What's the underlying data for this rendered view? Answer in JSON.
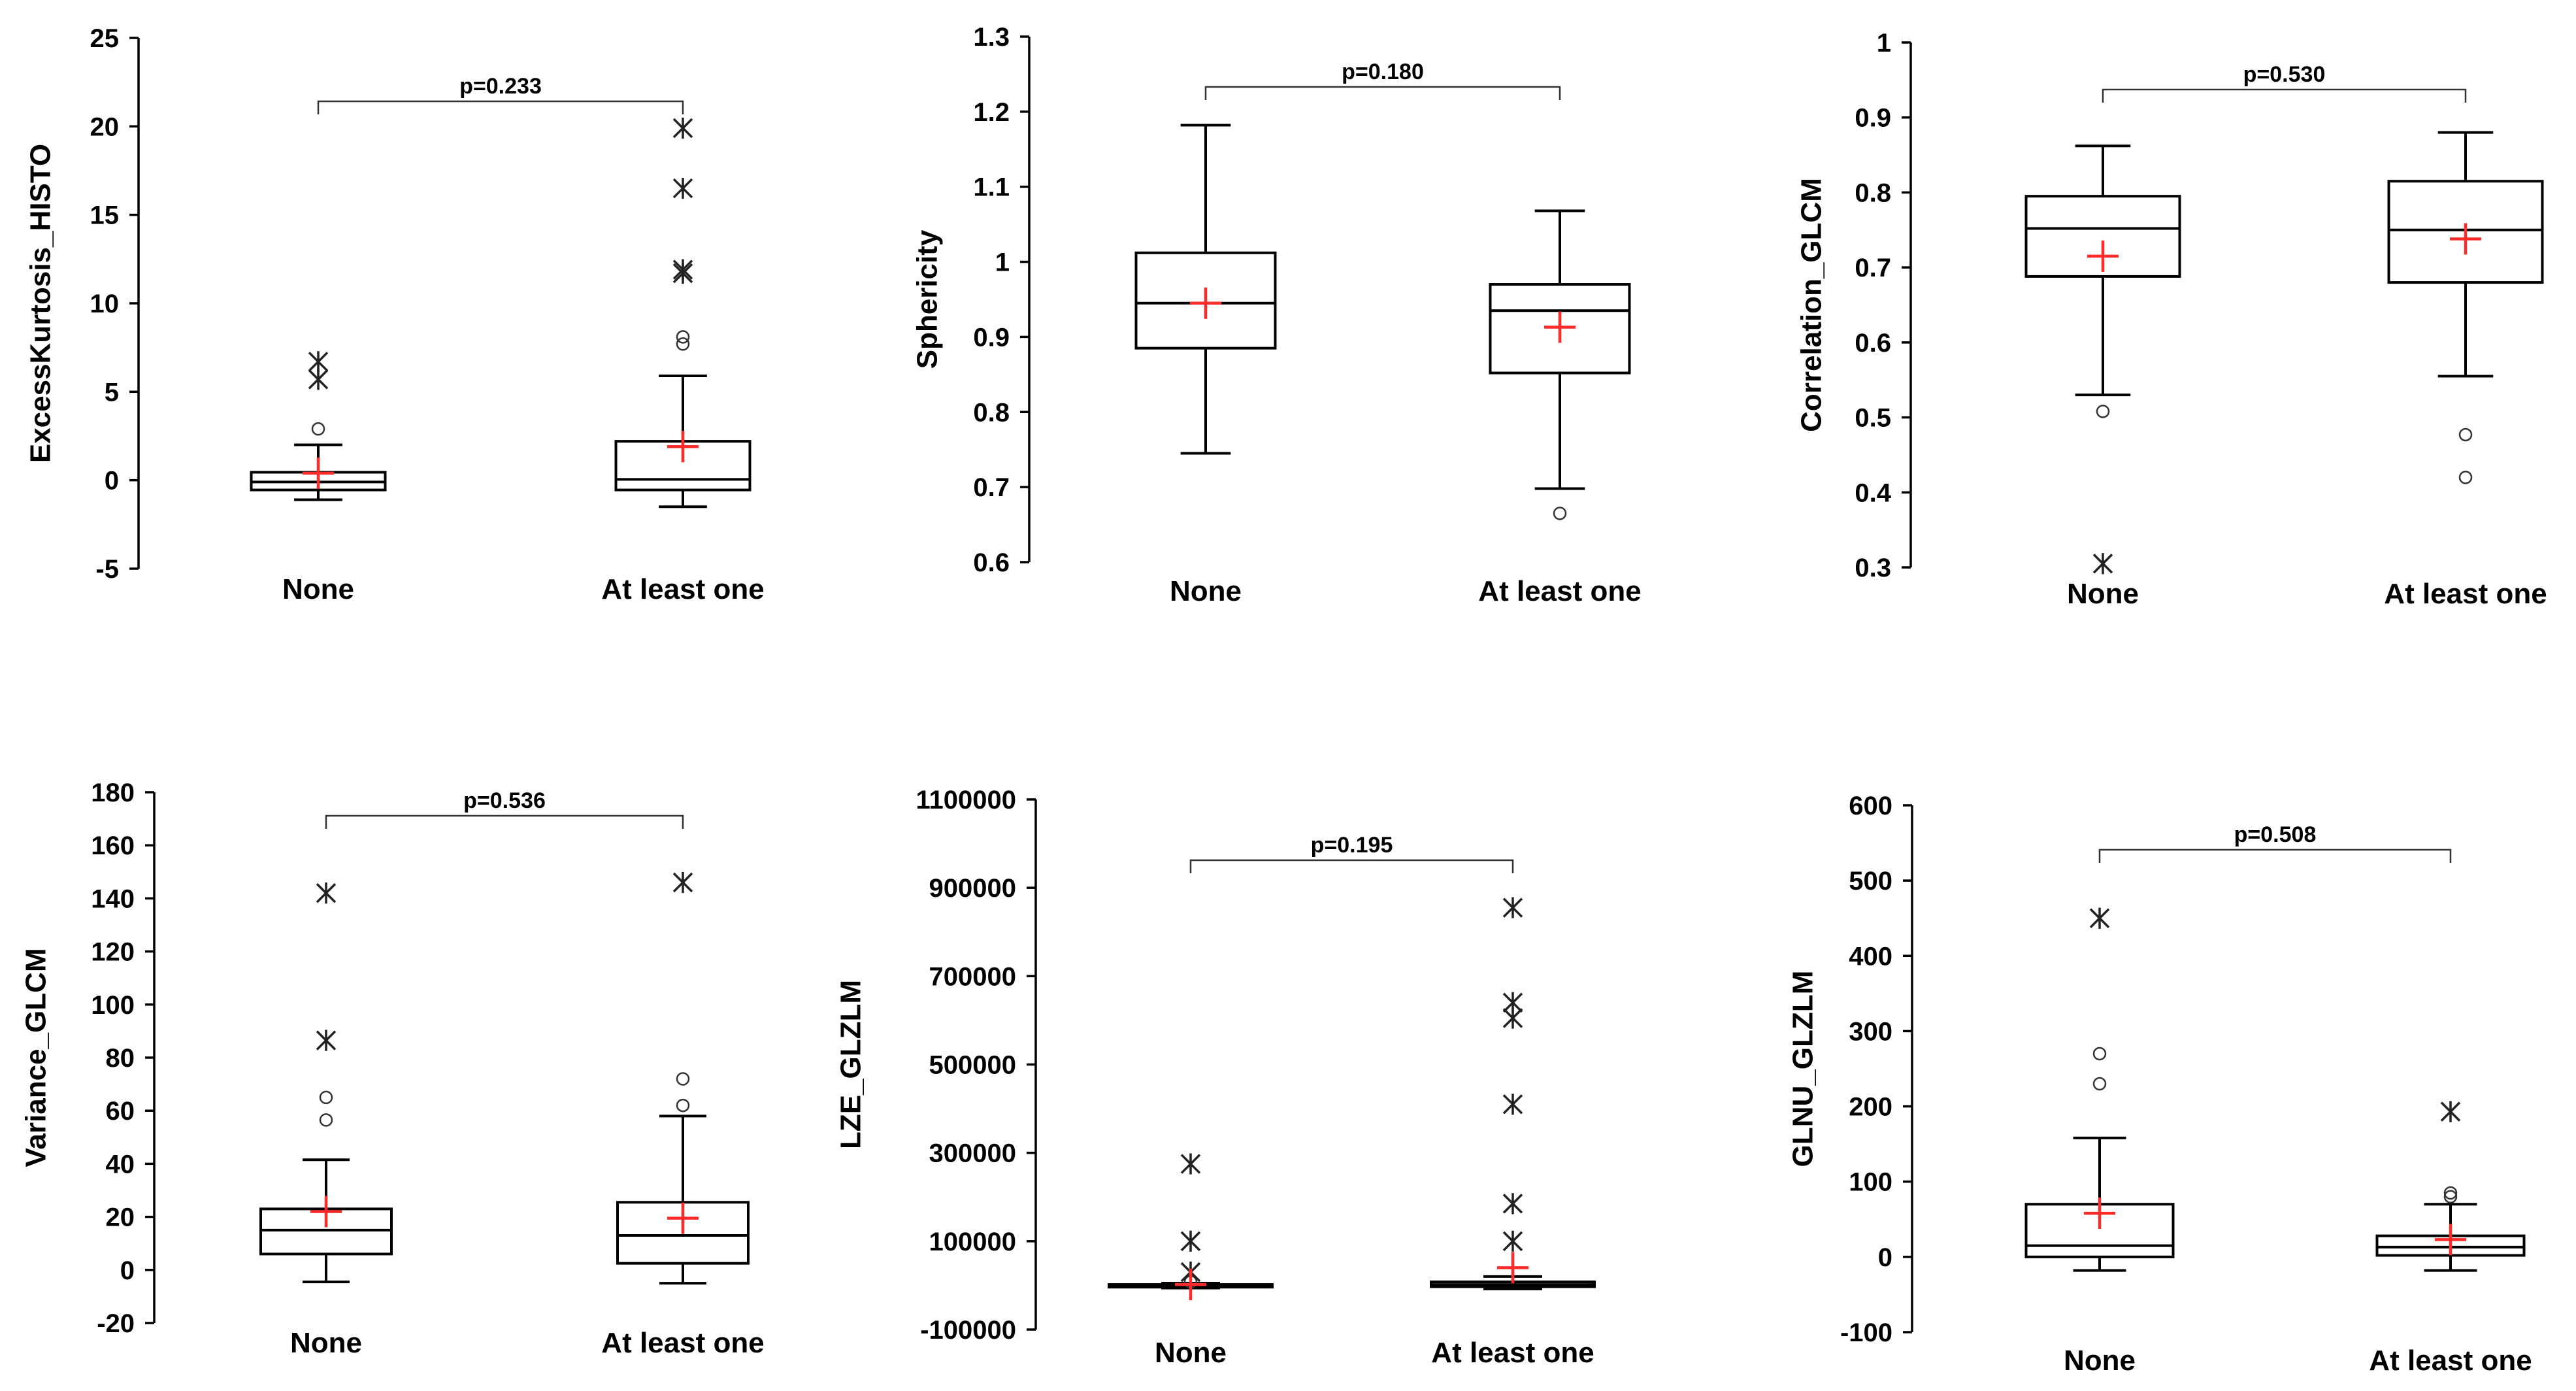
{
  "chart_data": [
    {
      "type": "box",
      "ylabel": "ExcessKurtosis_HISTO",
      "ylim": [
        -5,
        25
      ],
      "yticks": [
        -5,
        0,
        5,
        10,
        15,
        20,
        25
      ],
      "ytick_labels": [
        "-5",
        "0",
        "5",
        "10",
        "15",
        "20",
        "25"
      ],
      "categories": [
        "None",
        "At least one"
      ],
      "pvalue": "p=0.233",
      "boxes": [
        {
          "whisker_low": -1.1,
          "q1": -0.55,
          "median": -0.1,
          "q3": 0.45,
          "whisker_high": 2.0,
          "mean": 0.4,
          "outliers_circle": [
            2.9
          ],
          "outliers_star": [
            5.7,
            6.7
          ]
        },
        {
          "whisker_low": -1.5,
          "q1": -0.55,
          "median": 0.05,
          "q3": 2.2,
          "whisker_high": 5.9,
          "mean": 1.9,
          "outliers_circle": [
            7.7,
            8.1
          ],
          "outliers_star": [
            11.7,
            11.9,
            16.5,
            19.9
          ]
        }
      ]
    },
    {
      "type": "box",
      "ylabel": "Sphericity",
      "ylim": [
        0.6,
        1.3
      ],
      "yticks": [
        0.6,
        0.7,
        0.8,
        0.9,
        1.0,
        1.1,
        1.2,
        1.3
      ],
      "ytick_labels": [
        "0.6",
        "0.7",
        "0.8",
        "0.9",
        "1",
        "1.1",
        "1.2",
        "1.3"
      ],
      "categories": [
        "None",
        "At least one"
      ],
      "pvalue": "p=0.180",
      "boxes": [
        {
          "whisker_low": 0.745,
          "q1": 0.885,
          "median": 0.945,
          "q3": 1.012,
          "whisker_high": 1.182,
          "mean": 0.945,
          "outliers_circle": [],
          "outliers_star": []
        },
        {
          "whisker_low": 0.698,
          "q1": 0.852,
          "median": 0.935,
          "q3": 0.97,
          "whisker_high": 1.068,
          "mean": 0.913,
          "outliers_circle": [
            0.665
          ],
          "outliers_star": []
        }
      ]
    },
    {
      "type": "box",
      "ylabel": "Correlation_GLCM",
      "ylim": [
        0.3,
        1.0
      ],
      "yticks": [
        0.3,
        0.4,
        0.5,
        0.6,
        0.7,
        0.8,
        0.9,
        1.0
      ],
      "ytick_labels": [
        "0.3",
        "0.4",
        "0.5",
        "0.6",
        "0.7",
        "0.8",
        "0.9",
        "1"
      ],
      "categories": [
        "None",
        "At least one"
      ],
      "pvalue": "p=0.530",
      "boxes": [
        {
          "whisker_low": 0.53,
          "q1": 0.688,
          "median": 0.752,
          "q3": 0.795,
          "whisker_high": 0.862,
          "mean": 0.715,
          "outliers_circle": [
            0.508
          ],
          "outliers_star": [
            0.305
          ]
        },
        {
          "whisker_low": 0.555,
          "q1": 0.68,
          "median": 0.75,
          "q3": 0.815,
          "whisker_high": 0.88,
          "mean": 0.738,
          "outliers_circle": [
            0.42,
            0.477
          ],
          "outliers_star": []
        }
      ]
    },
    {
      "type": "box",
      "ylabel": "Variance_GLCM",
      "ylim": [
        -20,
        180
      ],
      "yticks": [
        -20,
        0,
        20,
        40,
        60,
        80,
        100,
        120,
        140,
        160,
        180
      ],
      "ytick_labels": [
        "-20",
        "0",
        "20",
        "40",
        "60",
        "80",
        "100",
        "120",
        "140",
        "160",
        "180"
      ],
      "categories": [
        "None",
        "At least one"
      ],
      "pvalue": "p=0.536",
      "boxes": [
        {
          "whisker_low": -4.5,
          "q1": 6,
          "median": 15,
          "q3": 23,
          "whisker_high": 41.5,
          "mean": 22,
          "outliers_circle": [
            56.5,
            65
          ],
          "outliers_star": [
            86.5,
            142
          ]
        },
        {
          "whisker_low": -5,
          "q1": 2.5,
          "median": 13,
          "q3": 25.5,
          "whisker_high": 58,
          "mean": 19.5,
          "outliers_circle": [
            62,
            72
          ],
          "outliers_star": [
            146
          ]
        }
      ]
    },
    {
      "type": "box",
      "ylabel": "LZE_GLZLM",
      "ylim": [
        -100000,
        1100000
      ],
      "yticks": [
        -100000,
        100000,
        300000,
        500000,
        700000,
        900000,
        1100000
      ],
      "ytick_labels": [
        "-100000",
        "100000",
        "300000",
        "500000",
        "700000",
        "900000",
        "1100000"
      ],
      "categories": [
        "None",
        "At least one"
      ],
      "pvalue": "p=0.195",
      "boxes": [
        {
          "whisker_low": -6000,
          "q1": -4000,
          "median": 0,
          "q3": 2000,
          "whisker_high": 5000,
          "mean": 2000,
          "outliers_circle": [
            8000
          ],
          "outliers_star": [
            30000,
            100000,
            275000
          ]
        },
        {
          "whisker_low": -8000,
          "q1": -3000,
          "median": 2000,
          "q3": 8000,
          "whisker_high": 20000,
          "mean": 40000,
          "outliers_circle": [],
          "outliers_star": [
            100000,
            185000,
            410000,
            605000,
            640000,
            855000
          ]
        }
      ]
    },
    {
      "type": "box",
      "ylabel": "GLNU_GLZLM",
      "ylim": [
        -100,
        600
      ],
      "yticks": [
        -100,
        0,
        100,
        200,
        300,
        400,
        500,
        600
      ],
      "ytick_labels": [
        "-100",
        "0",
        "100",
        "200",
        "300",
        "400",
        "500",
        "600"
      ],
      "categories": [
        "None",
        "At least one"
      ],
      "pvalue": "p=0.508",
      "boxes": [
        {
          "whisker_low": -18,
          "q1": 0,
          "median": 15,
          "q3": 70,
          "whisker_high": 158,
          "mean": 58,
          "outliers_circle": [
            230,
            270
          ],
          "outliers_star": [
            450
          ]
        },
        {
          "whisker_low": -18,
          "q1": 2,
          "median": 13,
          "q3": 28,
          "whisker_high": 70,
          "mean": 23,
          "outliers_circle": [
            80,
            85
          ],
          "outliers_star": [
            193
          ]
        }
      ]
    }
  ]
}
